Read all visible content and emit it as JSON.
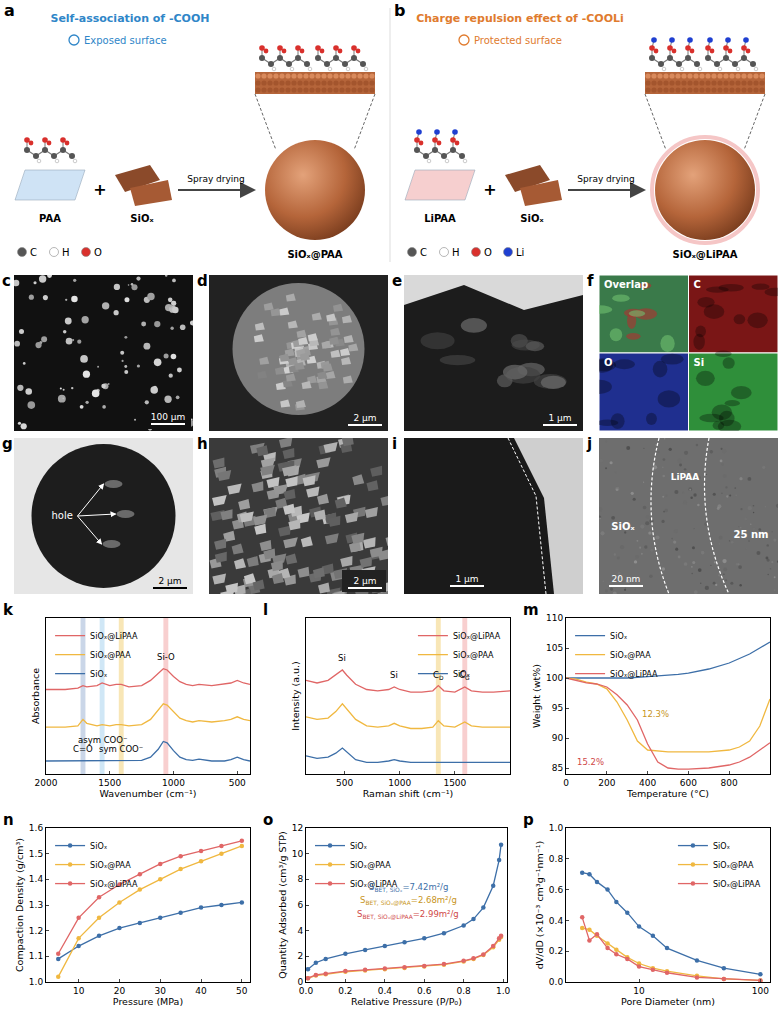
{
  "schematics": [
    {
      "label": "a",
      "header": "Self-association of -COOH",
      "note": "Exposed surface",
      "color": "#2f86c8",
      "film": "PAA",
      "plus": "+",
      "particle": "SiOₓ",
      "process": "Spray drying",
      "product": "SiOₓ@PAA",
      "atoms": [
        "C",
        "H",
        "O"
      ]
    },
    {
      "label": "b",
      "header": "Charge repulsion effect of -COOLi",
      "note": "Protected surface",
      "color": "#e07b2e",
      "film": "LiPAA",
      "plus": "+",
      "particle": "SiOₓ",
      "process": "Spray drying",
      "product": "SiOₓ@LiPAA",
      "atoms": [
        "C",
        "H",
        "O",
        "Li"
      ]
    }
  ],
  "micrographs": [
    {
      "label": "c",
      "scale_bar": "100 μm"
    },
    {
      "label": "d",
      "scale_bar": "2 μm"
    },
    {
      "label": "e",
      "scale_bar": "1 μm"
    },
    {
      "label": "f",
      "maps": [
        "Overlap",
        "C",
        "O",
        "Si"
      ]
    },
    {
      "label": "g",
      "scale_bar": "2 μm",
      "annotation": "hole"
    },
    {
      "label": "h",
      "scale_bar": "2 μm"
    },
    {
      "label": "i",
      "scale_bar": "1 μm"
    },
    {
      "label": "j",
      "scale_bar": "20 nm",
      "regions": [
        "SiOₓ",
        "LiPAA"
      ],
      "thickness": "25 nm"
    }
  ],
  "chart_data": [
    {
      "label": "k",
      "type": "line",
      "x_label": "Wavenumber (cm⁻¹)",
      "y_label": "Absorbance",
      "x": [
        2000,
        1850,
        1750,
        1710,
        1680,
        1600,
        1560,
        1500,
        1450,
        1410,
        1350,
        1250,
        1180,
        1120,
        1080,
        1050,
        1000,
        950,
        900,
        850,
        800,
        700,
        600,
        550,
        500,
        450,
        400
      ],
      "series": [
        {
          "name": "SiOₓ@LiPAA",
          "color": "#e06666",
          "values": [
            6.5,
            6.5,
            6.6,
            6.8,
            6.7,
            6.8,
            7.0,
            6.8,
            6.9,
            6.9,
            6.7,
            6.8,
            7.2,
            7.7,
            8.1,
            8.0,
            7.5,
            7.1,
            6.9,
            6.8,
            6.9,
            6.8,
            6.9,
            7.0,
            7.2,
            7.0,
            6.9
          ]
        },
        {
          "name": "SiOₓ@PAA",
          "color": "#f0b840",
          "values": [
            3.6,
            3.6,
            3.7,
            4.2,
            3.9,
            3.7,
            3.8,
            3.7,
            3.8,
            3.8,
            3.7,
            3.8,
            4.2,
            4.9,
            5.4,
            5.3,
            4.8,
            4.3,
            4.1,
            4.0,
            4.1,
            4.0,
            4.1,
            4.2,
            4.4,
            4.2,
            4.1
          ]
        },
        {
          "name": "SiOₓ",
          "color": "#3d6fa8",
          "values": [
            1.0,
            1.0,
            1.0,
            1.05,
            1.0,
            1.0,
            1.0,
            1.0,
            1.0,
            1.0,
            1.0,
            1.05,
            1.3,
            1.9,
            2.5,
            2.4,
            1.8,
            1.3,
            1.1,
            1.05,
            1.15,
            1.0,
            1.0,
            1.1,
            1.3,
            1.1,
            1.0
          ]
        }
      ],
      "xlim": [
        2000,
        400
      ],
      "xticks": [
        2000,
        1500,
        1000,
        500
      ],
      "ylim": [
        0,
        12
      ],
      "tick_labels": "x",
      "grid": false,
      "legend": "top-left",
      "annotations": [
        {
          "text": "C=O",
          "x": 1710,
          "y": 1.9,
          "color": "#9fb4d6",
          "band": true
        },
        {
          "text": "asym COO⁻",
          "x": 1560,
          "y": 2.6,
          "color": "#a9d3ef",
          "band": true
        },
        {
          "text": "sym COO⁻",
          "x": 1410,
          "y": 1.9,
          "color": "#f3d27a",
          "band": true
        },
        {
          "text": "Si-O",
          "x": 1060,
          "y": 9.0,
          "color": "#f2a7a7",
          "band": true
        }
      ]
    },
    {
      "label": "l",
      "type": "line",
      "x_label": "Raman shift (cm⁻¹)",
      "y_label": "Intensity (a.u.)",
      "x": [
        150,
        250,
        350,
        420,
        480,
        520,
        600,
        700,
        800,
        900,
        950,
        1000,
        1100,
        1200,
        1300,
        1350,
        1400,
        1500,
        1590,
        1650,
        1750,
        1850,
        2000
      ],
      "series": [
        {
          "name": "SiOₓ@LiPAA",
          "color": "#e06666",
          "values": [
            7.2,
            7.0,
            7.2,
            7.6,
            8.0,
            7.6,
            6.9,
            6.5,
            6.4,
            6.5,
            6.7,
            6.5,
            6.3,
            6.3,
            6.4,
            6.8,
            6.4,
            6.3,
            6.7,
            6.4,
            6.3,
            6.3,
            6.4
          ]
        },
        {
          "name": "SiOₓ@PAA",
          "color": "#f0b840",
          "values": [
            4.4,
            4.2,
            4.3,
            4.8,
            5.4,
            5.0,
            4.2,
            3.7,
            3.6,
            3.7,
            3.9,
            3.7,
            3.5,
            3.5,
            3.6,
            4.1,
            3.7,
            3.6,
            4.0,
            3.7,
            3.6,
            3.6,
            3.6
          ]
        },
        {
          "name": "SiOₓ",
          "color": "#3d6fa8",
          "values": [
            1.4,
            1.2,
            1.3,
            1.6,
            2.0,
            1.7,
            1.1,
            0.9,
            0.9,
            1.0,
            1.1,
            1.0,
            0.9,
            0.9,
            0.9,
            0.9,
            0.9,
            0.9,
            0.9,
            0.9,
            0.9,
            0.9,
            0.9
          ]
        }
      ],
      "xlim": [
        150,
        2000
      ],
      "xticks": [
        500,
        1000,
        1500
      ],
      "ylim": [
        0,
        12
      ],
      "tick_labels": "x",
      "grid": false,
      "legend": "top-right",
      "annotations": [
        {
          "text": "Si",
          "x": 480,
          "y": 8.9
        },
        {
          "text": "Si",
          "x": 950,
          "y": 7.6
        },
        {
          "text": "C",
          "sub": "D",
          "x": 1350,
          "y": 7.6,
          "color": "#f3d27a",
          "band": true
        },
        {
          "text": "C",
          "sub": "G",
          "x": 1590,
          "y": 7.6,
          "color": "#f2a7a7",
          "band": true
        }
      ]
    },
    {
      "label": "m",
      "type": "line",
      "x_label": "Temperature (°C)",
      "y_label": "Weight (wt%)",
      "x": [
        0,
        50,
        100,
        150,
        200,
        250,
        300,
        350,
        400,
        450,
        500,
        550,
        600,
        700,
        800,
        850,
        900,
        950,
        1000
      ],
      "series": [
        {
          "name": "SiOₓ",
          "color": "#3d6fa8",
          "values": [
            100,
            100,
            100,
            100,
            99.9,
            100,
            100,
            100.1,
            100.2,
            100.3,
            100.4,
            100.6,
            100.8,
            101.5,
            102.5,
            103.2,
            104,
            105,
            106
          ]
        },
        {
          "name": "SiOₓ@PAA",
          "color": "#f0b840",
          "values": [
            100,
            99.8,
            99.3,
            99,
            98.2,
            96,
            93,
            89.5,
            88,
            87.8,
            87.7,
            87.7,
            87.7,
            87.7,
            88,
            88.5,
            89.5,
            92,
            96.5
          ]
        },
        {
          "name": "SiOₓ@LiPAA",
          "color": "#e06666",
          "values": [
            100,
            99.6,
            99.2,
            99,
            98.5,
            97.2,
            95.5,
            93,
            89,
            86,
            85,
            84.8,
            84.8,
            85,
            85.5,
            86,
            86.8,
            88,
            89.2
          ]
        }
      ],
      "xlim": [
        0,
        1000
      ],
      "xticks": [
        0,
        200,
        400,
        600,
        800,
        1000
      ],
      "ylim": [
        84,
        110
      ],
      "yticks": [
        85,
        90,
        95,
        100,
        105,
        110
      ],
      "grid": false,
      "legend": "top-left",
      "annotations": [
        {
          "text": "12.3%",
          "x": 440,
          "y": 94,
          "color": "#c8951c"
        },
        {
          "text": "15.2%",
          "x": 120,
          "y": 86,
          "color": "#d04848"
        }
      ]
    },
    {
      "label": "n",
      "type": "line",
      "x_label": "Pressure (MPa)",
      "y_label": "Compaction Density (g/cm³)",
      "x": [
        5,
        10,
        15,
        20,
        25,
        30,
        35,
        40,
        45,
        50
      ],
      "series": [
        {
          "name": "SiOₓ",
          "color": "#3d6fa8",
          "marker": "circle",
          "values": [
            1.09,
            1.14,
            1.18,
            1.21,
            1.23,
            1.25,
            1.27,
            1.29,
            1.3,
            1.31
          ]
        },
        {
          "name": "SiOₓ@PAA",
          "color": "#f0b840",
          "marker": "circle",
          "values": [
            1.02,
            1.17,
            1.25,
            1.31,
            1.36,
            1.4,
            1.44,
            1.47,
            1.5,
            1.53
          ]
        },
        {
          "name": "SiOₓ@LiPAA",
          "color": "#e06666",
          "marker": "circle",
          "values": [
            1.11,
            1.25,
            1.33,
            1.38,
            1.42,
            1.46,
            1.49,
            1.51,
            1.53,
            1.55
          ]
        }
      ],
      "xlim": [
        2,
        52
      ],
      "xticks": [
        10,
        20,
        30,
        40,
        50
      ],
      "ylim": [
        1.0,
        1.6
      ],
      "yticks": [
        {
          "value": 1.0,
          "label": "1.0"
        },
        1.1,
        1.2,
        1.3,
        1.4,
        1.5,
        1.6
      ],
      "grid": false,
      "legend": "top-left"
    },
    {
      "label": "o",
      "type": "line",
      "x_label": "Relative Pressure (P/P₀)",
      "y_label": "Quantity Adsorbed (cm³/g STP)",
      "x": [
        0.01,
        0.05,
        0.1,
        0.2,
        0.3,
        0.4,
        0.5,
        0.6,
        0.7,
        0.8,
        0.85,
        0.9,
        0.95,
        0.98,
        0.99
      ],
      "series": [
        {
          "name": "SiOₓ",
          "color": "#3d6fa8",
          "marker": "circle",
          "values": [
            1.0,
            1.5,
            1.8,
            2.2,
            2.5,
            2.8,
            3.1,
            3.4,
            3.8,
            4.4,
            4.9,
            5.8,
            7.5,
            9.5,
            10.7
          ]
        },
        {
          "name": "SiOₓ@PAA",
          "color": "#f0b840",
          "marker": "circle",
          "values": [
            0.3,
            0.5,
            0.6,
            0.8,
            0.9,
            1.0,
            1.1,
            1.2,
            1.35,
            1.6,
            1.8,
            2.1,
            2.7,
            3.3,
            3.5
          ]
        },
        {
          "name": "SiOₓ@LiPAA",
          "color": "#e06666",
          "marker": "circle",
          "values": [
            0.3,
            0.55,
            0.65,
            0.85,
            0.95,
            1.05,
            1.15,
            1.25,
            1.4,
            1.65,
            1.85,
            2.15,
            2.8,
            3.4,
            3.6
          ]
        }
      ],
      "xlim": [
        0,
        1.02
      ],
      "xticks": [
        {
          "value": 0,
          "label": "0.0"
        },
        0.2,
        0.4,
        0.6,
        0.8,
        {
          "value": 1.0,
          "label": "1.0"
        }
      ],
      "ylim": [
        0,
        12
      ],
      "yticks": [
        0,
        2,
        4,
        6,
        8,
        10,
        12
      ],
      "grid": false,
      "legend": "top-left",
      "annotations": [
        {
          "text": "S",
          "sub": "BET, SiOₓ",
          "suffix": "=7.42m²/g",
          "x": 0.52,
          "y": 7.4,
          "color": "#3d6fa8"
        },
        {
          "text": "S",
          "sub": "BET, SiOₓ@PAA",
          "suffix": "=2.68m²/g",
          "x": 0.52,
          "y": 6.3,
          "color": "#c8951c"
        },
        {
          "text": "S",
          "sub": "BET, SiOₓ@LiPAA",
          "suffix": "=2.99m²/g",
          "x": 0.52,
          "y": 5.2,
          "color": "#d04848"
        }
      ]
    },
    {
      "label": "p",
      "type": "line",
      "x_label": "Pore Diameter (nm)",
      "y_label": "dV/dD (×10⁻³ cm³g⁻¹nm⁻¹)",
      "x": [
        3.4,
        3.9,
        4.5,
        5.5,
        6.5,
        8,
        10,
        13,
        17,
        30,
        50,
        100
      ],
      "series": [
        {
          "name": "SiOₓ",
          "color": "#3d6fa8",
          "marker": "circle",
          "values": [
            0.71,
            0.7,
            0.65,
            0.6,
            0.52,
            0.45,
            0.36,
            0.3,
            0.22,
            0.14,
            0.09,
            0.05
          ]
        },
        {
          "name": "SiOₓ@PAA",
          "color": "#f0b840",
          "marker": "circle",
          "values": [
            0.35,
            0.34,
            0.3,
            0.25,
            0.21,
            0.16,
            0.12,
            0.09,
            0.07,
            0.04,
            0.02,
            0.01
          ]
        },
        {
          "name": "SiOₓ@LiPAA",
          "color": "#e06666",
          "marker": "circle",
          "values": [
            0.42,
            0.27,
            0.31,
            0.22,
            0.18,
            0.15,
            0.1,
            0.08,
            0.06,
            0.03,
            0.02,
            0.01
          ]
        }
      ],
      "log": "x",
      "xlim": [
        2.5,
        120
      ],
      "xticks": [
        10,
        100
      ],
      "ylim": [
        0,
        1.0
      ],
      "yticks": [
        {
          "value": 0,
          "label": "0.0"
        },
        0.2,
        0.4,
        0.6,
        0.8,
        {
          "value": 1.0,
          "label": "1.0"
        }
      ],
      "grid": false,
      "legend": "top-right"
    }
  ]
}
